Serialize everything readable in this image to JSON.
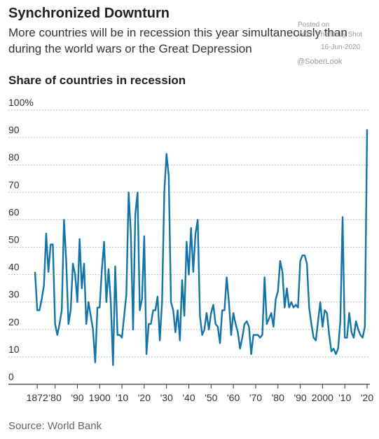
{
  "chart_data": {
    "type": "line",
    "title": "Synchronized Downturn",
    "subtitle_lines": [
      "More countries will be in recession this year simultaneously than",
      "during the world wars or the Great Depression"
    ],
    "y_axis_title": "Share of countries in recession",
    "source": "Source: World Bank",
    "watermark": [
      "Posted on",
      "WSJ: The Daily Shot",
      "16-Jun-2020",
      "@SoberLook"
    ],
    "x": [
      1871,
      1872,
      1873,
      1874,
      1875,
      1876,
      1877,
      1878,
      1879,
      1880,
      1881,
      1882,
      1883,
      1884,
      1885,
      1886,
      1887,
      1888,
      1889,
      1890,
      1891,
      1892,
      1893,
      1894,
      1895,
      1896,
      1897,
      1898,
      1899,
      1900,
      1901,
      1902,
      1903,
      1904,
      1905,
      1906,
      1907,
      1908,
      1909,
      1910,
      1911,
      1912,
      1913,
      1914,
      1915,
      1916,
      1917,
      1918,
      1919,
      1920,
      1921,
      1922,
      1923,
      1924,
      1925,
      1926,
      1927,
      1928,
      1929,
      1930,
      1931,
      1932,
      1933,
      1934,
      1935,
      1936,
      1937,
      1938,
      1939,
      1940,
      1941,
      1942,
      1943,
      1944,
      1945,
      1946,
      1947,
      1948,
      1949,
      1950,
      1951,
      1952,
      1953,
      1954,
      1955,
      1956,
      1957,
      1958,
      1959,
      1960,
      1961,
      1962,
      1963,
      1964,
      1965,
      1966,
      1967,
      1968,
      1969,
      1970,
      1971,
      1972,
      1973,
      1974,
      1975,
      1976,
      1977,
      1978,
      1979,
      1980,
      1981,
      1982,
      1983,
      1984,
      1985,
      1986,
      1987,
      1988,
      1989,
      1990,
      1991,
      1992,
      1993,
      1994,
      1995,
      1996,
      1997,
      1998,
      1999,
      2000,
      2001,
      2002,
      2003,
      2004,
      2005,
      2006,
      2007,
      2008,
      2009,
      2010,
      2011,
      2012,
      2013,
      2014,
      2015,
      2016,
      2017,
      2018,
      2019,
      2020
    ],
    "series": [
      {
        "color": "#1374a8",
        "values": [
          41,
          27,
          27,
          31,
          36,
          55,
          41,
          51,
          51,
          22,
          18,
          22,
          27,
          60,
          45,
          22,
          27,
          44,
          40,
          30,
          53,
          35,
          44,
          22,
          30,
          25,
          20,
          8,
          28,
          28,
          42,
          52,
          30,
          42,
          30,
          7,
          43,
          18,
          18,
          17,
          25,
          33,
          70,
          55,
          20,
          62,
          70,
          27,
          31,
          54,
          11,
          22,
          22,
          27,
          27,
          32,
          16,
          30,
          70,
          84,
          76,
          30,
          27,
          19,
          27,
          16,
          38,
          25,
          52,
          40,
          57,
          41,
          55,
          60,
          25,
          18,
          20,
          26,
          20,
          26,
          29,
          22,
          21,
          15,
          27,
          27,
          39,
          30,
          18,
          26,
          22,
          19,
          13,
          17,
          22,
          23,
          21,
          11,
          18,
          18,
          18,
          17,
          18,
          39,
          22,
          24,
          26,
          21,
          31,
          34,
          45,
          41,
          28,
          35,
          28,
          30,
          28,
          29,
          28,
          45,
          47,
          47,
          44,
          28,
          22,
          17,
          16,
          23,
          30,
          21,
          27,
          26,
          18,
          12,
          13,
          11,
          13,
          23,
          61,
          17,
          17,
          26,
          19,
          17,
          23,
          20,
          18,
          17,
          21,
          93
        ]
      }
    ],
    "xlim": [
      1871,
      2020
    ],
    "xticks": [
      {
        "value": 1872,
        "label": "1872"
      },
      {
        "value": 1880,
        "label": "'80"
      },
      {
        "value": 1890,
        "label": "'90"
      },
      1900,
      {
        "value": 1910,
        "label": "'10"
      },
      {
        "value": 1920,
        "label": "'20"
      },
      {
        "value": 1930,
        "label": "'30"
      },
      {
        "value": 1940,
        "label": "'40"
      },
      {
        "value": 1950,
        "label": "'50"
      },
      {
        "value": 1960,
        "label": "'60"
      },
      {
        "value": 1970,
        "label": "'70"
      },
      {
        "value": 1980,
        "label": "'80"
      },
      {
        "value": 1990,
        "label": "'90"
      },
      2000,
      {
        "value": 2010,
        "label": "'10"
      },
      {
        "value": 2020,
        "label": "'20"
      }
    ],
    "ylim": [
      0,
      100
    ],
    "yticks": [
      0,
      10,
      20,
      30,
      40,
      50,
      60,
      70,
      80,
      90,
      {
        "value": 100,
        "label": "100%"
      }
    ],
    "grid": true
  }
}
